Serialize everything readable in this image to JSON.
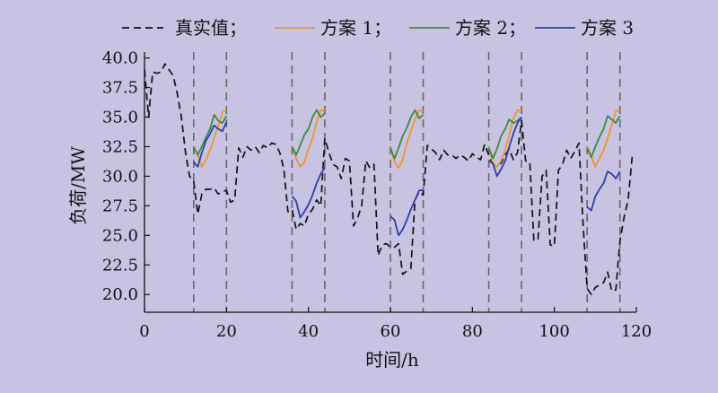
{
  "chart_data": {
    "type": "line",
    "xlabel": "时间/h",
    "ylabel": "负荷/MW",
    "xlim": [
      0,
      120
    ],
    "ylim": [
      18.5,
      40.5
    ],
    "x_ticks": [
      0,
      20,
      40,
      60,
      80,
      100,
      120
    ],
    "y_ticks": [
      20.0,
      22.5,
      25.0,
      27.5,
      30.0,
      32.5,
      35.0,
      37.5,
      40.0
    ],
    "x_tick_labels": [
      "0",
      "20",
      "40",
      "60",
      "80",
      "100",
      "120"
    ],
    "y_tick_labels": [
      "20.0",
      "22.5",
      "25.0",
      "27.5",
      "30.0",
      "32.5",
      "35.0",
      "37.5",
      "40.0"
    ],
    "grid": false,
    "legend_position": "top",
    "vlines": [
      12,
      20,
      36,
      44,
      60,
      68,
      84,
      92,
      108,
      116
    ],
    "series": [
      {
        "name": "真实值；",
        "color": "#111111",
        "dash": true,
        "points": [
          [
            0,
            39
          ],
          [
            1,
            35
          ],
          [
            2,
            38.8
          ],
          [
            3,
            38.7
          ],
          [
            4,
            38.8
          ],
          [
            5,
            39.5
          ],
          [
            6,
            39
          ],
          [
            7,
            38.5
          ],
          [
            8,
            37
          ],
          [
            9,
            35
          ],
          [
            10,
            32
          ],
          [
            11,
            30
          ],
          [
            12,
            29.6
          ],
          [
            13,
            26.8
          ],
          [
            14,
            28.5
          ],
          [
            15,
            28.9
          ],
          [
            16,
            28.9
          ],
          [
            17,
            29
          ],
          [
            18,
            28.5
          ],
          [
            19,
            28.7
          ],
          [
            20,
            28.8
          ],
          [
            21,
            27.8
          ],
          [
            22,
            28
          ],
          [
            23,
            32.4
          ],
          [
            24,
            31.6
          ],
          [
            25,
            32.5
          ],
          [
            26,
            32.2
          ],
          [
            27,
            32.5
          ],
          [
            28,
            32
          ],
          [
            29,
            32.6
          ],
          [
            30,
            32.4
          ],
          [
            31,
            32.8
          ],
          [
            32,
            32.7
          ],
          [
            33,
            32
          ],
          [
            34,
            30.6
          ],
          [
            35,
            27
          ],
          [
            36,
            27.2
          ],
          [
            37,
            25.5
          ],
          [
            38,
            26
          ],
          [
            39,
            25.8
          ],
          [
            40,
            26.8
          ],
          [
            41,
            27.2
          ],
          [
            42,
            28
          ],
          [
            43,
            27.5
          ],
          [
            44,
            33.2
          ],
          [
            45,
            32
          ],
          [
            46,
            31
          ],
          [
            47,
            30.8
          ],
          [
            48,
            29.8
          ],
          [
            49,
            31.5
          ],
          [
            50,
            31.3
          ],
          [
            51,
            25.8
          ],
          [
            52,
            26.5
          ],
          [
            53,
            27.5
          ],
          [
            54,
            31.3
          ],
          [
            55,
            30.7
          ],
          [
            56,
            31
          ],
          [
            57,
            23.3
          ],
          [
            58,
            24.2
          ],
          [
            59,
            24.3
          ],
          [
            60,
            24
          ],
          [
            61,
            24
          ],
          [
            62,
            24.3
          ],
          [
            63,
            21.7
          ],
          [
            64,
            22
          ],
          [
            65,
            22.2
          ],
          [
            66,
            28
          ],
          [
            67,
            28.7
          ],
          [
            68,
            28.4
          ],
          [
            69,
            32.6
          ],
          [
            70,
            32.3
          ],
          [
            71,
            32
          ],
          [
            72,
            31.4
          ],
          [
            73,
            32.2
          ],
          [
            74,
            31.8
          ],
          [
            75,
            31.8
          ],
          [
            76,
            31.5
          ],
          [
            77,
            31.8
          ],
          [
            78,
            31.6
          ],
          [
            79,
            31.3
          ],
          [
            80,
            31.9
          ],
          [
            81,
            31.6
          ],
          [
            82,
            31.4
          ],
          [
            83,
            32.7
          ],
          [
            84,
            31.8
          ],
          [
            85,
            31
          ],
          [
            86,
            31
          ],
          [
            87,
            31.1
          ],
          [
            88,
            31.8
          ],
          [
            89,
            32.3
          ],
          [
            90,
            31.4
          ],
          [
            91,
            32
          ],
          [
            92,
            34.7
          ],
          [
            93,
            31.3
          ],
          [
            94,
            31.2
          ],
          [
            95,
            24.6
          ],
          [
            96,
            24.6
          ],
          [
            97,
            30
          ],
          [
            98,
            30.5
          ],
          [
            99,
            24.2
          ],
          [
            100,
            24.1
          ],
          [
            101,
            30.5
          ],
          [
            102,
            31
          ],
          [
            103,
            32.2
          ],
          [
            104,
            31.5
          ],
          [
            105,
            32.1
          ],
          [
            106,
            32.8
          ],
          [
            107,
            26
          ],
          [
            108,
            20.5
          ],
          [
            109,
            20
          ],
          [
            110,
            20.6
          ],
          [
            111,
            20.8
          ],
          [
            112,
            21
          ],
          [
            113,
            21.9
          ],
          [
            114,
            20.3
          ],
          [
            115,
            20.4
          ],
          [
            116,
            24.5
          ],
          [
            117,
            26.5
          ],
          [
            118,
            28
          ],
          [
            119,
            31.7
          ]
        ]
      },
      {
        "name": "方案 1；",
        "color": "#f0962a",
        "dash": false,
        "segments": [
          [
            [
              12,
              32.5
            ],
            [
              13,
              31.8
            ],
            [
              14,
              30.8
            ],
            [
              15,
              31.4
            ],
            [
              16,
              32.2
            ],
            [
              17,
              33.2
            ],
            [
              18,
              34.3
            ],
            [
              19,
              35.4
            ],
            [
              20,
              35.6
            ]
          ],
          [
            [
              36,
              32.5
            ],
            [
              37,
              31.5
            ],
            [
              38,
              30.8
            ],
            [
              39,
              31.2
            ],
            [
              40,
              32.3
            ],
            [
              41,
              33.2
            ],
            [
              42,
              34.6
            ],
            [
              43,
              35.6
            ],
            [
              44,
              35.5
            ]
          ],
          [
            [
              60,
              32.5
            ],
            [
              61,
              31.2
            ],
            [
              62,
              30.7
            ],
            [
              63,
              31.4
            ],
            [
              64,
              32.8
            ],
            [
              65,
              33.8
            ],
            [
              66,
              34.8
            ],
            [
              67,
              35.6
            ],
            [
              68,
              35.4
            ]
          ],
          [
            [
              84,
              32.5
            ],
            [
              85,
              31.1
            ],
            [
              86,
              30.8
            ],
            [
              87,
              31.3
            ],
            [
              88,
              32.2
            ],
            [
              89,
              33.5
            ],
            [
              90,
              34.9
            ],
            [
              91,
              35.6
            ],
            [
              92,
              35.5
            ]
          ],
          [
            [
              108,
              32.5
            ],
            [
              109,
              31.7
            ],
            [
              110,
              30.8
            ],
            [
              111,
              31.5
            ],
            [
              112,
              32.2
            ],
            [
              113,
              33.2
            ],
            [
              114,
              34.3
            ],
            [
              115,
              35.5
            ],
            [
              116,
              35.6
            ]
          ]
        ]
      },
      {
        "name": "方案 2；",
        "color": "#3a8a3c",
        "dash": false,
        "segments": [
          [
            [
              12,
              32.5
            ],
            [
              13,
              31.8
            ],
            [
              14,
              32.5
            ],
            [
              15,
              33.3
            ],
            [
              16,
              34
            ],
            [
              17,
              35.2
            ],
            [
              18,
              34.7
            ],
            [
              19,
              34.5
            ],
            [
              20,
              35.1
            ]
          ],
          [
            [
              36,
              32.5
            ],
            [
              37,
              31.8
            ],
            [
              38,
              32.6
            ],
            [
              39,
              33.5
            ],
            [
              40,
              34
            ],
            [
              41,
              35
            ],
            [
              42,
              35.6
            ],
            [
              43,
              35
            ],
            [
              44,
              35.3
            ]
          ],
          [
            [
              60,
              32.4
            ],
            [
              61,
              31.5
            ],
            [
              62,
              32.4
            ],
            [
              63,
              33.4
            ],
            [
              64,
              34.1
            ],
            [
              65,
              35
            ],
            [
              66,
              35.6
            ],
            [
              67,
              34.9
            ],
            [
              68,
              35.2
            ]
          ],
          [
            [
              84,
              32.4
            ],
            [
              85,
              31.5
            ],
            [
              86,
              32.3
            ],
            [
              87,
              33.4
            ],
            [
              88,
              34
            ],
            [
              89,
              34.8
            ],
            [
              90,
              34.5
            ],
            [
              91,
              34.7
            ],
            [
              92,
              35
            ]
          ],
          [
            [
              108,
              32.4
            ],
            [
              109,
              31.6
            ],
            [
              110,
              32.5
            ],
            [
              111,
              33.3
            ],
            [
              112,
              34
            ],
            [
              113,
              35.1
            ],
            [
              114,
              34.8
            ],
            [
              115,
              34.5
            ],
            [
              116,
              35.1
            ]
          ]
        ]
      },
      {
        "name": "方案 3",
        "color": "#2c3fa8",
        "dash": false,
        "segments": [
          [
            [
              12,
              31.2
            ],
            [
              13,
              30.8
            ],
            [
              14,
              32
            ],
            [
              15,
              33
            ],
            [
              16,
              33.6
            ],
            [
              17,
              34.3
            ],
            [
              18,
              34
            ],
            [
              19,
              33.8
            ],
            [
              20,
              34.6
            ]
          ],
          [
            [
              36,
              28.3
            ],
            [
              37,
              27.9
            ],
            [
              38,
              26.5
            ],
            [
              39,
              27
            ],
            [
              40,
              27.6
            ],
            [
              41,
              28.4
            ],
            [
              42,
              29.4
            ],
            [
              43,
              30.2
            ],
            [
              44,
              30.7
            ]
          ],
          [
            [
              60,
              26.6
            ],
            [
              61,
              26.3
            ],
            [
              62,
              25
            ],
            [
              63,
              25.5
            ],
            [
              64,
              26.3
            ],
            [
              65,
              27.2
            ],
            [
              66,
              28
            ],
            [
              67,
              28.8
            ],
            [
              68,
              28.8
            ]
          ],
          [
            [
              84,
              31.3
            ],
            [
              85,
              31.1
            ],
            [
              86,
              30
            ],
            [
              87,
              30.6
            ],
            [
              88,
              31.3
            ],
            [
              89,
              32.5
            ],
            [
              90,
              33.6
            ],
            [
              91,
              34.5
            ],
            [
              92,
              35
            ]
          ],
          [
            [
              108,
              27.4
            ],
            [
              109,
              27.1
            ],
            [
              110,
              28.3
            ],
            [
              111,
              28.9
            ],
            [
              112,
              29.4
            ],
            [
              113,
              30.4
            ],
            [
              114,
              30.2
            ],
            [
              115,
              29.8
            ],
            [
              116,
              30.4
            ]
          ]
        ]
      }
    ]
  }
}
